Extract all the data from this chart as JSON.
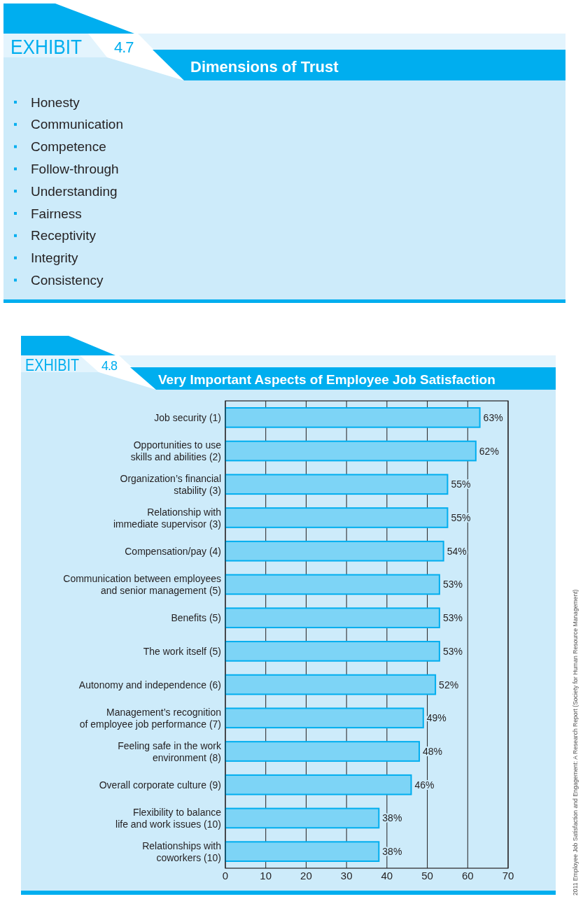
{
  "chart_data": [
    {
      "type": "other",
      "title": "Dimensions of Trust",
      "annotations": [
        "EXHIBIT",
        "4.7"
      ],
      "categories": [
        "Honesty",
        "Communication",
        "Competence",
        "Follow-through",
        "Understanding",
        "Fairness",
        "Receptivity",
        "Integrity",
        "Consistency"
      ]
    },
    {
      "type": "bar",
      "orientation": "horizontal",
      "title": "Very Important Aspects of Employee Job Satisfaction",
      "annotations": [
        "EXHIBIT",
        "4.8",
        "2011 Employee Job Satisfaction and Engagement: A Research Report (Society for Human Resource Management)"
      ],
      "categories": [
        "Job security (1)",
        "Opportunities to use\nskills and abilities (2)",
        "Organization’s financial\nstability (3)",
        "Relationship with\nimmediate supervisor (3)",
        "Compensation/pay (4)",
        "Communication between employees\nand senior management (5)",
        "Benefits (5)",
        "The work itself (5)",
        "Autonomy and independence (6)",
        "Management’s recognition\nof employee job performance (7)",
        "Feeling safe in the work\nenvironment (8)",
        "Overall corporate culture (9)",
        "Flexibility to balance\nlife and work issues (10)",
        "Relationships with\ncoworkers (10)"
      ],
      "values": [
        63,
        62,
        55,
        55,
        54,
        53,
        53,
        53,
        52,
        49,
        48,
        46,
        38,
        38
      ],
      "value_labels": [
        "63%",
        "62%",
        "55%",
        "55%",
        "54%",
        "53%",
        "53%",
        "53%",
        "52%",
        "49%",
        "48%",
        "46%",
        "38%",
        "38%"
      ],
      "color": "#7dd4f6",
      "xlim": [
        0,
        70
      ],
      "xticks": [
        0,
        10,
        20,
        30,
        40,
        50,
        60,
        70
      ],
      "grid": "x"
    }
  ]
}
